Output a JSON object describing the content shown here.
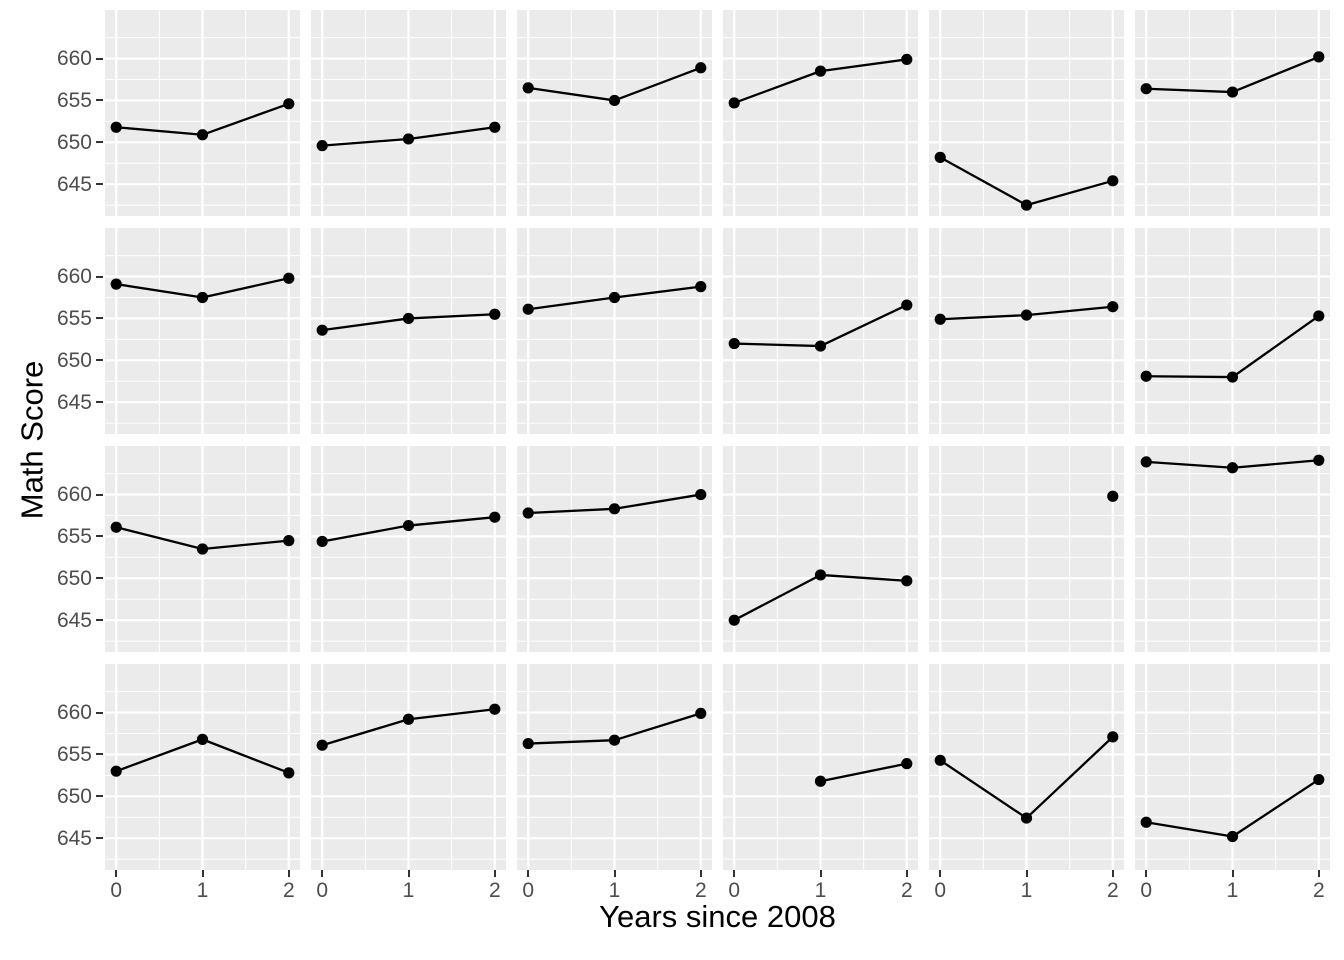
{
  "chart_data": {
    "type": "line",
    "title": "",
    "xlabel": "Years since 2008",
    "ylabel": "Math Score",
    "x": [
      0,
      1,
      2
    ],
    "x_ticks": [
      0,
      1,
      2
    ],
    "y_ticks": [
      645,
      650,
      655,
      660
    ],
    "x_minor_ticks": [
      0.5,
      1.5
    ],
    "y_minor_ticks": [
      642.5,
      647.5,
      652.5,
      657.5,
      662.5
    ],
    "xlim": [
      -0.13,
      2.13
    ],
    "ylim": [
      641.2,
      665.8
    ],
    "grid": "major+minor white on grey panels",
    "legend": "none",
    "layout": {
      "rows": 4,
      "cols": 6,
      "strip_labels": "none"
    },
    "facets": [
      {
        "row": 1,
        "col": 1,
        "values": [
          651.8,
          650.9,
          654.6
        ]
      },
      {
        "row": 1,
        "col": 2,
        "values": [
          649.6,
          650.4,
          651.8
        ]
      },
      {
        "row": 1,
        "col": 3,
        "values": [
          656.5,
          655.0,
          658.9
        ]
      },
      {
        "row": 1,
        "col": 4,
        "values": [
          654.7,
          658.5,
          659.9
        ]
      },
      {
        "row": 1,
        "col": 5,
        "values": [
          648.2,
          642.5,
          645.4
        ]
      },
      {
        "row": 1,
        "col": 6,
        "values": [
          656.4,
          656.0,
          660.2
        ]
      },
      {
        "row": 2,
        "col": 1,
        "values": [
          659.1,
          657.5,
          659.8
        ]
      },
      {
        "row": 2,
        "col": 2,
        "values": [
          653.6,
          655.0,
          655.5
        ]
      },
      {
        "row": 2,
        "col": 3,
        "values": [
          656.1,
          657.5,
          658.8
        ]
      },
      {
        "row": 2,
        "col": 4,
        "values": [
          652.0,
          651.7,
          656.6
        ]
      },
      {
        "row": 2,
        "col": 5,
        "values": [
          654.9,
          655.4,
          656.4
        ]
      },
      {
        "row": 2,
        "col": 6,
        "values": [
          648.1,
          648.0,
          655.3
        ]
      },
      {
        "row": 3,
        "col": 1,
        "values": [
          656.1,
          653.5,
          654.5
        ]
      },
      {
        "row": 3,
        "col": 2,
        "values": [
          654.4,
          656.3,
          657.3
        ]
      },
      {
        "row": 3,
        "col": 3,
        "values": [
          657.8,
          658.3,
          660.0
        ]
      },
      {
        "row": 3,
        "col": 4,
        "values": [
          645.0,
          650.4,
          649.7
        ]
      },
      {
        "row": 3,
        "col": 5,
        "values": [
          null,
          null,
          659.8
        ]
      },
      {
        "row": 3,
        "col": 6,
        "values": [
          663.9,
          663.2,
          664.1
        ]
      },
      {
        "row": 4,
        "col": 1,
        "values": [
          653.0,
          656.8,
          652.8
        ]
      },
      {
        "row": 4,
        "col": 2,
        "values": [
          656.1,
          659.2,
          660.4
        ]
      },
      {
        "row": 4,
        "col": 3,
        "values": [
          656.3,
          656.7,
          659.9
        ]
      },
      {
        "row": 4,
        "col": 4,
        "values": [
          null,
          651.8,
          653.9
        ]
      },
      {
        "row": 4,
        "col": 5,
        "values": [
          654.3,
          647.4,
          657.1
        ]
      },
      {
        "row": 4,
        "col": 6,
        "values": [
          646.9,
          645.2,
          652.0
        ]
      }
    ],
    "style": {
      "panel_bg": "#EBEBEB",
      "grid_color": "#FFFFFF",
      "line_color": "#000000",
      "point_color": "#000000",
      "tick_label_color": "#4D4D4D",
      "axis_tick_color": "#333333",
      "axis_title_color": "#000000"
    }
  }
}
